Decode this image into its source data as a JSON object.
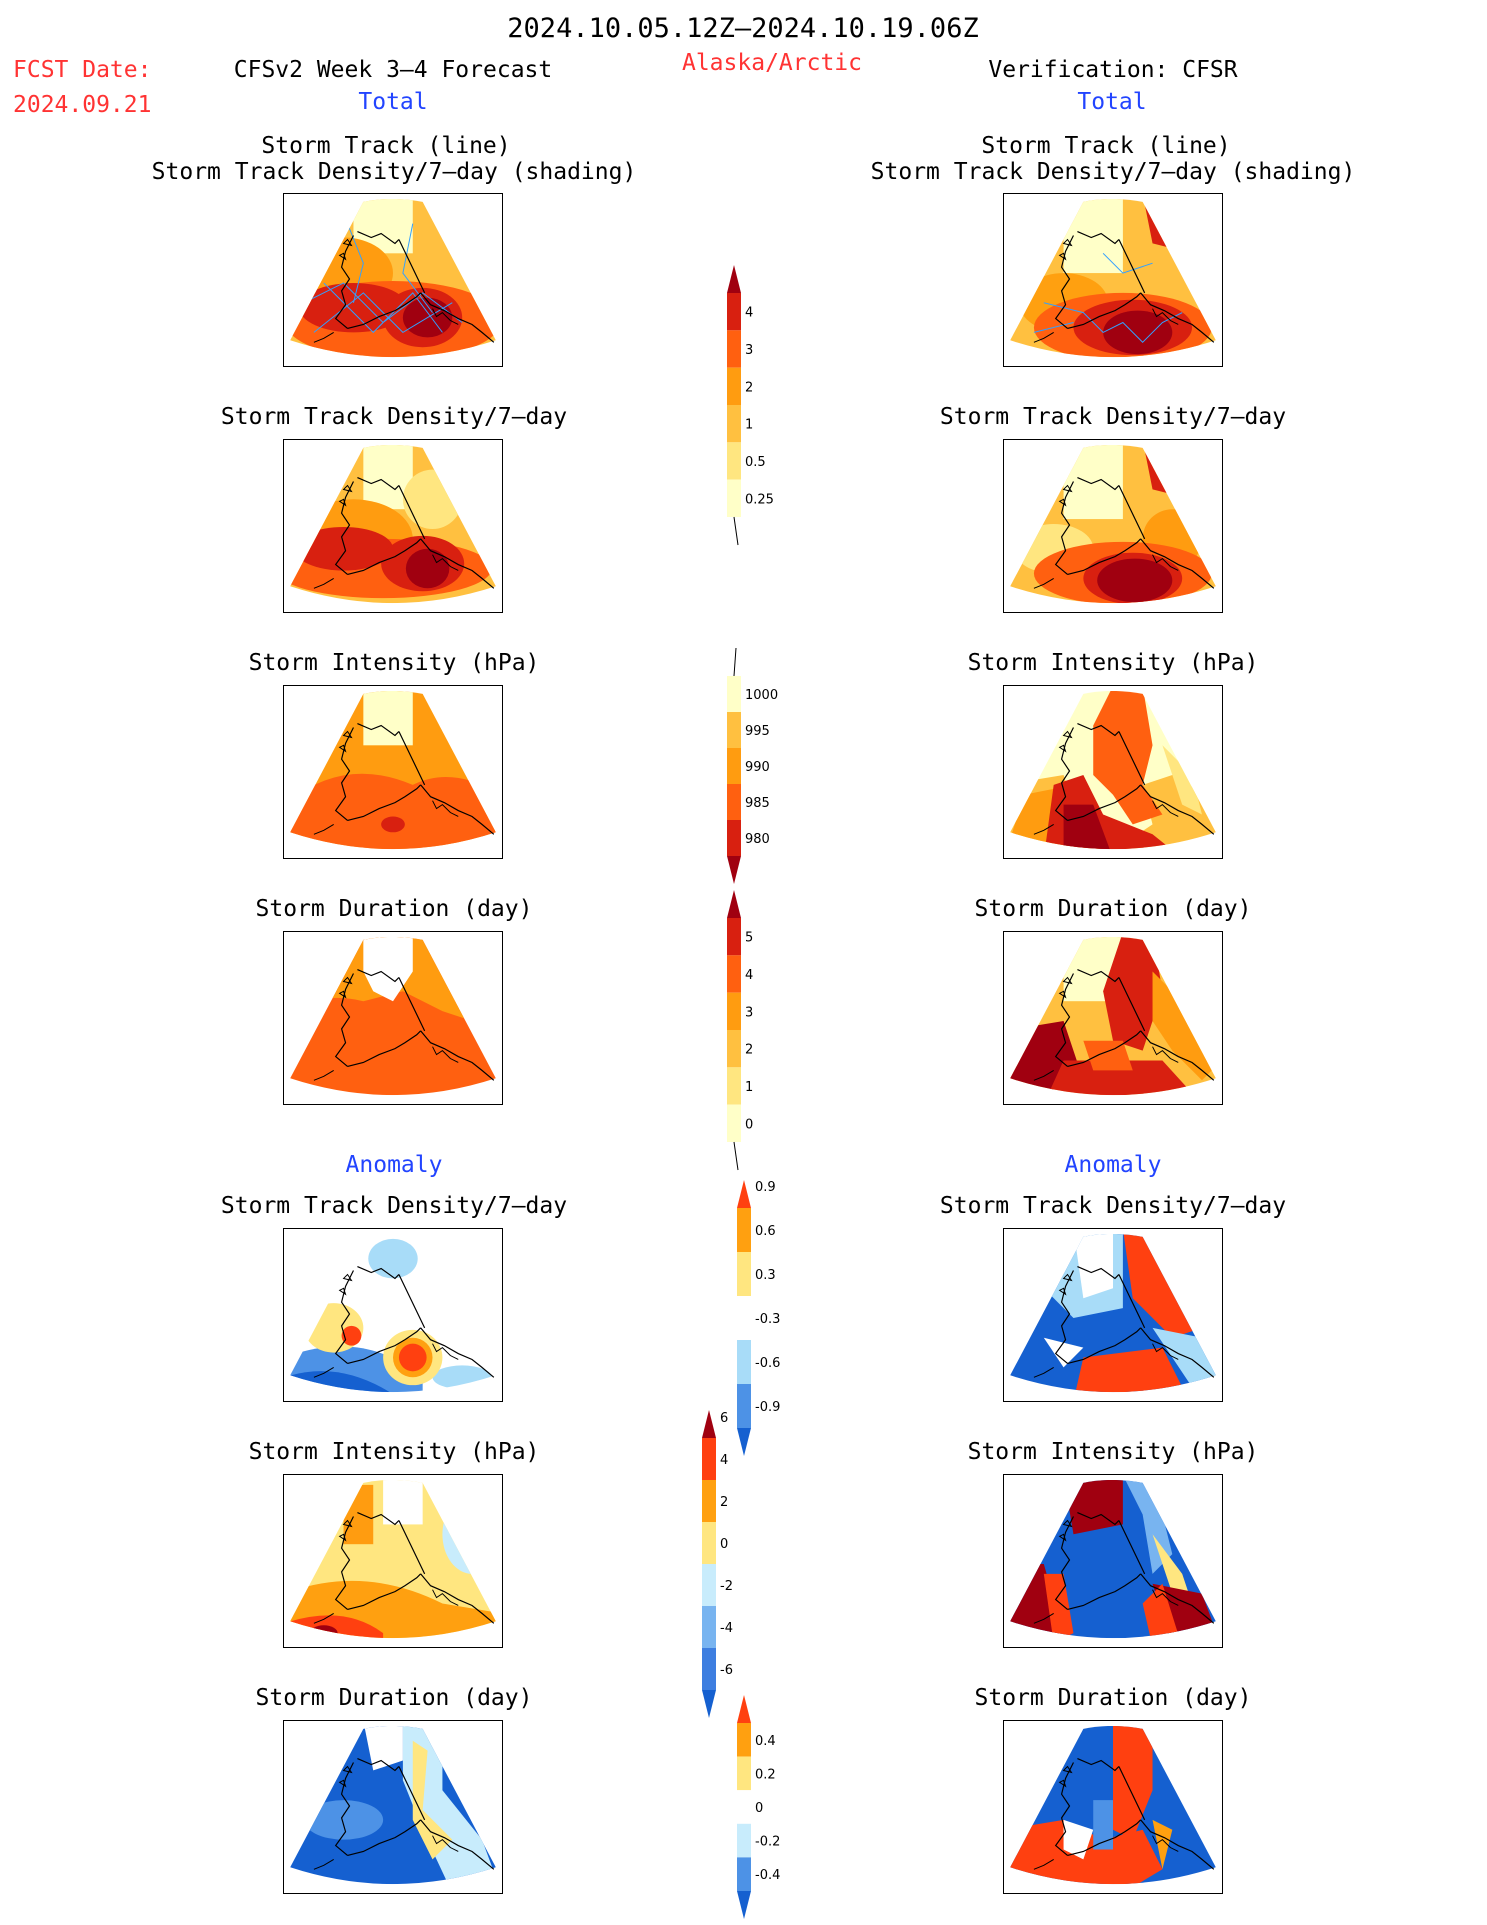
{
  "header": {
    "period": "2024.10.05.12Z–2024.10.19.06Z",
    "fcst_label": "FCST Date:",
    "fcst_date": "2024.09.21",
    "forecast_title": "CFSv2 Week 3–4 Forecast",
    "region": "Alaska/Arctic",
    "verification_title": "Verification: CFSR"
  },
  "sections": {
    "total": "Total",
    "anomaly": "Anomaly"
  },
  "titles": {
    "track_line": "Storm Track (line)",
    "track_density_shading": "Storm Track Density/7–day (shading)",
    "track_density": "Storm Track Density/7–day",
    "intensity": "Storm Intensity (hPa)",
    "duration": "Storm Duration (day)"
  },
  "colorbars": [
    {
      "id": "density",
      "labels": [
        "0.25",
        "0.5",
        "1",
        "2",
        "3",
        "4"
      ],
      "colors": [
        "#ffffc8",
        "#ffe680",
        "#ffc040",
        "#ff9c10",
        "#ff6010",
        "#d82010",
        "#a00010"
      ],
      "top_arrow": "#a00010",
      "bottom_tail": true
    },
    {
      "id": "intensity",
      "labels": [
        "980",
        "985",
        "990",
        "995",
        "1000"
      ],
      "colors": [
        "#a00010",
        "#d82010",
        "#ff6010",
        "#ff9c10",
        "#ffc040",
        "#ffffc8"
      ],
      "top_tail": true,
      "bottom_arrow": "#a00010"
    },
    {
      "id": "duration",
      "labels": [
        "0",
        "1",
        "2",
        "3",
        "4",
        "5"
      ],
      "colors": [
        "#ffffc8",
        "#ffe680",
        "#ffc040",
        "#ff9c10",
        "#ff6010",
        "#d82010",
        "#a00010"
      ],
      "top_arrow": "#a00010",
      "bottom_tail": true
    },
    {
      "id": "density_anom",
      "labels": [
        "-0.9",
        "-0.6",
        "-0.3",
        "0.3",
        "0.6",
        "0.9"
      ],
      "colors": [
        "#1560d0",
        "#4d92e6",
        "#a8dcf8",
        "#ffffff",
        "#ffe680",
        "#ffa010",
        "#ff4010"
      ],
      "top_arrow": "#ff4010",
      "bottom_arrow": "#1560d0"
    },
    {
      "id": "intensity_anom",
      "labels": [
        "-6",
        "-4",
        "-2",
        "0",
        "2",
        "4",
        "6"
      ],
      "colors": [
        "#1560d0",
        "#3d7ee0",
        "#78b4f0",
        "#c8ecfc",
        "#ffe680",
        "#ffa010",
        "#ff4010",
        "#a00010"
      ],
      "top_arrow": "#a00010",
      "bottom_arrow": "#1560d0"
    },
    {
      "id": "duration_anom",
      "labels": [
        "-0.4",
        "-0.2",
        "0",
        "0.2",
        "0.4"
      ],
      "colors": [
        "#1560d0",
        "#4d92e6",
        "#c8ecfc",
        "#ffffff",
        "#ffe680",
        "#ffa010",
        "#ff4010"
      ],
      "top_arrow": "#ff4010",
      "bottom_arrow": "#1560d0"
    }
  ]
}
